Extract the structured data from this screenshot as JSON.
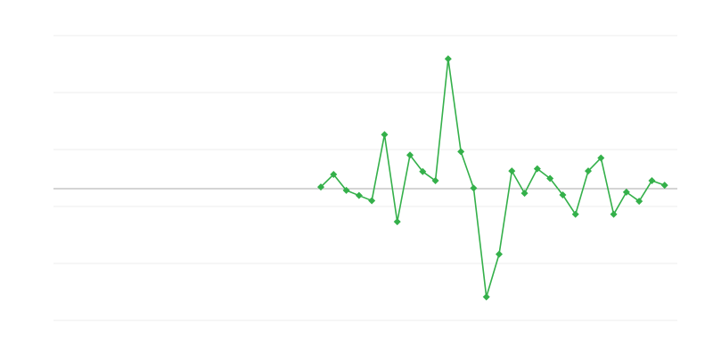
{
  "chart_data": {
    "type": "line",
    "title": "",
    "xlabel": "",
    "ylabel": "",
    "x": [
      21,
      22,
      23,
      24,
      25,
      26,
      27,
      28,
      29,
      30,
      31,
      32,
      33,
      34,
      35,
      36,
      37,
      38,
      39,
      40,
      41,
      42,
      43,
      44,
      45,
      46,
      47,
      48
    ],
    "xlim": [
      0,
      49
    ],
    "series": [
      {
        "values": [
          0.03,
          0.25,
          -0.03,
          -0.12,
          -0.21,
          0.95,
          -0.58,
          0.59,
          0.3,
          0.14,
          2.28,
          0.65,
          0.01,
          -1.9,
          -1.15,
          0.31,
          -0.08,
          0.35,
          0.18,
          -0.11,
          -0.45,
          0.31,
          0.54,
          -0.45,
          -0.06,
          -0.22,
          0.14,
          0.06
        ],
        "color": "#34b04a",
        "marker": "diamond"
      }
    ],
    "ylim": [
      -2.3125,
      2.6875
    ],
    "gridlines": [
      2.6875,
      1.6875,
      0.6875,
      -0.3125,
      -1.3125,
      -2.3125
    ],
    "zero_line": true,
    "grid": true,
    "legend": "none",
    "colors": {
      "grid": "#ececec",
      "zero_line": "#aaaaaa"
    }
  }
}
